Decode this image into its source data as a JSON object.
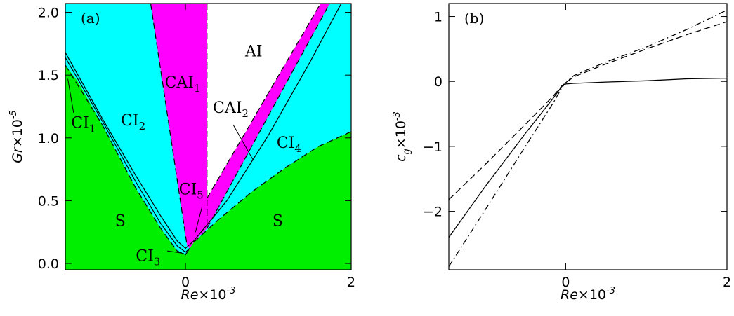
{
  "colors": {
    "stable": "#00ee00",
    "convective": "#00ffff",
    "abs_conv": "#ff00ff",
    "absolute": "#ffffff"
  },
  "chart_data": [
    {
      "panel_label": "(a)",
      "type": "area",
      "xlabel_main": "Re",
      "xlabel_exp": "-3",
      "xlabel_mult": "×10",
      "ylabel_main": "Gr",
      "ylabel_exp": "-5",
      "ylabel_mult": "×10",
      "xlim": [
        -1.45,
        2.0
      ],
      "ylim": [
        -0.05,
        2.07
      ],
      "x_ticks": [
        {
          "v": 0,
          "label": "0"
        },
        {
          "v": 2,
          "label": "2"
        }
      ],
      "y_ticks": [
        {
          "v": 0.0,
          "label": "0.0"
        },
        {
          "v": 0.5,
          "label": "0.5"
        },
        {
          "v": 1.0,
          "label": "1.0"
        },
        {
          "v": 1.5,
          "label": "1.5"
        },
        {
          "v": 2.0,
          "label": "2.0"
        }
      ],
      "regions": [
        {
          "id": "S_left",
          "color": "stable",
          "points": [
            [
              -1.45,
              -0.05
            ],
            [
              -1.45,
              1.58
            ],
            [
              -1.3,
              1.45
            ],
            [
              -1.0,
              1.1
            ],
            [
              -0.6,
              0.6
            ],
            [
              -0.3,
              0.28
            ],
            [
              -0.1,
              0.1
            ],
            [
              0.0,
              0.07
            ],
            [
              0.05,
              0.12
            ],
            [
              0.1,
              0.17
            ],
            [
              0.4,
              0.35
            ],
            [
              0.8,
              0.57
            ],
            [
              1.2,
              0.76
            ],
            [
              1.6,
              0.93
            ],
            [
              2.0,
              1.05
            ],
            [
              2.0,
              -0.05
            ]
          ]
        },
        {
          "id": "CI",
          "color": "convective",
          "points": [
            [
              -1.45,
              1.58
            ],
            [
              -1.45,
              2.07
            ],
            [
              -0.42,
              2.07
            ],
            [
              0.02,
              0.14
            ],
            [
              0.05,
              0.12
            ],
            [
              0.0,
              0.07
            ],
            [
              -0.1,
              0.1
            ],
            [
              -0.3,
              0.28
            ],
            [
              -0.6,
              0.6
            ],
            [
              -1.0,
              1.1
            ],
            [
              -1.3,
              1.45
            ]
          ]
        },
        {
          "id": "CI_right",
          "color": "convective",
          "points": [
            [
              0.28,
              0.4
            ],
            [
              1.7,
              2.07
            ],
            [
              2.0,
              2.07
            ],
            [
              2.0,
              1.05
            ],
            [
              1.6,
              0.93
            ],
            [
              1.2,
              0.76
            ],
            [
              0.8,
              0.57
            ],
            [
              0.4,
              0.35
            ],
            [
              0.1,
              0.17
            ]
          ]
        },
        {
          "id": "CAI1",
          "color": "abs_conv",
          "points": [
            [
              -0.42,
              2.07
            ],
            [
              0.26,
              2.07
            ],
            [
              0.26,
              0.28
            ],
            [
              0.1,
              0.17
            ],
            [
              0.05,
              0.12
            ],
            [
              0.02,
              0.14
            ]
          ]
        },
        {
          "id": "CAI2",
          "color": "abs_conv",
          "points": [
            [
              0.26,
              0.28
            ],
            [
              1.74,
              2.07
            ],
            [
              1.63,
              2.07
            ],
            [
              0.26,
              0.52
            ]
          ]
        },
        {
          "id": "AI",
          "color": "absolute",
          "points": [
            [
              0.26,
              0.52
            ],
            [
              1.63,
              2.07
            ],
            [
              0.26,
              2.07
            ]
          ]
        }
      ],
      "curves": [
        {
          "style": "dashed",
          "points": [
            [
              -0.42,
              2.07
            ],
            [
              0.02,
              0.14
            ]
          ]
        },
        {
          "style": "dashed",
          "points": [
            [
              0.26,
              2.07
            ],
            [
              0.26,
              0.28
            ]
          ]
        },
        {
          "style": "dashed",
          "points": [
            [
              0.26,
              0.52
            ],
            [
              1.63,
              2.07
            ]
          ]
        },
        {
          "style": "dashed",
          "points": [
            [
              0.26,
              0.28
            ],
            [
              1.74,
              2.07
            ]
          ]
        },
        {
          "style": "dashed",
          "points": [
            [
              0.1,
              0.17
            ],
            [
              0.4,
              0.35
            ],
            [
              0.8,
              0.57
            ],
            [
              1.2,
              0.76
            ],
            [
              1.6,
              0.93
            ],
            [
              2.0,
              1.05
            ]
          ]
        },
        {
          "style": "dashed",
          "points": [
            [
              -1.45,
              1.58
            ],
            [
              -1.0,
              1.1
            ],
            [
              -0.6,
              0.6
            ],
            [
              -0.3,
              0.28
            ],
            [
              -0.1,
              0.1
            ],
            [
              0.0,
              0.07
            ],
            [
              0.05,
              0.12
            ]
          ]
        },
        {
          "style": "solid",
          "points": [
            [
              -1.45,
              1.68
            ],
            [
              -1.0,
              1.15
            ],
            [
              -0.6,
              0.7
            ],
            [
              -0.3,
              0.38
            ],
            [
              -0.1,
              0.18
            ],
            [
              0.0,
              0.12
            ],
            [
              0.1,
              0.18
            ],
            [
              0.5,
              0.5
            ],
            [
              1.0,
              1.02
            ],
            [
              1.5,
              1.6
            ],
            [
              1.88,
              2.07
            ]
          ]
        },
        {
          "style": "solid",
          "points": [
            [
              -1.45,
              1.64
            ],
            [
              -1.0,
              1.13
            ],
            [
              -0.6,
              0.65
            ],
            [
              -0.3,
              0.32
            ],
            [
              -0.1,
              0.14
            ],
            [
              0.0,
              0.09
            ],
            [
              0.05,
              0.12
            ]
          ]
        }
      ],
      "labels": [
        {
          "main": "AI",
          "sub": "",
          "x": 0.72,
          "y": 1.65
        },
        {
          "main": "CAI",
          "sub": "1",
          "x": -0.25,
          "y": 1.4
        },
        {
          "main": "CAI",
          "sub": "2",
          "x": 0.33,
          "y": 1.2
        },
        {
          "main": "CI",
          "sub": "1",
          "x": -1.38,
          "y": 1.08
        },
        {
          "main": "CI",
          "sub": "2",
          "x": -0.78,
          "y": 1.1
        },
        {
          "main": "CI",
          "sub": "4",
          "x": 1.1,
          "y": 0.92
        },
        {
          "main": "CI",
          "sub": "5",
          "x": -0.08,
          "y": 0.55
        },
        {
          "main": "CI",
          "sub": "3",
          "x": -0.6,
          "y": 0.02
        },
        {
          "main": "S",
          "sub": "",
          "x": -0.85,
          "y": 0.3
        },
        {
          "main": "S",
          "sub": "",
          "x": 1.05,
          "y": 0.3
        }
      ],
      "leaders": [
        {
          "from": [
            -1.35,
            1.2
          ],
          "to": [
            -1.42,
            1.47
          ]
        },
        {
          "from": [
            0.58,
            1.1
          ],
          "to": [
            0.82,
            0.82
          ]
        },
        {
          "from": [
            0.2,
            0.45
          ],
          "to": [
            0.12,
            0.25
          ]
        },
        {
          "from": [
            -0.22,
            0.1
          ],
          "to": [
            -0.02,
            0.08
          ]
        }
      ]
    },
    {
      "panel_label": "(b)",
      "type": "line",
      "xlabel_main": "Re",
      "xlabel_exp": "-3",
      "xlabel_mult": "×10",
      "ylabel_main": "c",
      "ylabel_sub": "g",
      "ylabel_exp": "-3",
      "ylabel_mult": "×10",
      "xlim": [
        -1.45,
        2.0
      ],
      "ylim": [
        -2.9,
        1.2
      ],
      "x_ticks": [
        {
          "v": 0,
          "label": "0"
        },
        {
          "v": 2,
          "label": "2"
        }
      ],
      "y_ticks": [
        {
          "v": -2,
          "label": "−2"
        },
        {
          "v": -1,
          "label": "−1"
        },
        {
          "v": 0,
          "label": "0"
        },
        {
          "v": 1,
          "label": "1"
        }
      ],
      "series": [
        {
          "style": "solid",
          "points": [
            [
              -1.45,
              -2.4
            ],
            [
              -1.0,
              -1.62
            ],
            [
              -0.5,
              -0.8
            ],
            [
              -0.15,
              -0.25
            ],
            [
              -0.05,
              -0.08
            ],
            [
              0.0,
              -0.04
            ],
            [
              0.1,
              -0.03
            ],
            [
              0.5,
              -0.01
            ],
            [
              1.0,
              0.01
            ],
            [
              1.5,
              0.04
            ],
            [
              2.0,
              0.05
            ]
          ]
        },
        {
          "style": "dashed",
          "points": [
            [
              -1.45,
              -1.82
            ],
            [
              -1.0,
              -1.28
            ],
            [
              -0.5,
              -0.66
            ],
            [
              -0.15,
              -0.22
            ],
            [
              -0.05,
              -0.07
            ],
            [
              0.0,
              -0.02
            ],
            [
              0.1,
              0.07
            ],
            [
              0.5,
              0.27
            ],
            [
              1.0,
              0.5
            ],
            [
              1.5,
              0.72
            ],
            [
              2.0,
              0.92
            ]
          ]
        },
        {
          "style": "dashdot",
          "points": [
            [
              -1.45,
              -2.85
            ],
            [
              -1.0,
              -1.98
            ],
            [
              -0.5,
              -1.0
            ],
            [
              -0.15,
              -0.32
            ],
            [
              -0.05,
              -0.1
            ],
            [
              0.0,
              -0.02
            ],
            [
              0.1,
              0.09
            ],
            [
              0.5,
              0.3
            ],
            [
              1.0,
              0.53
            ],
            [
              1.5,
              0.8
            ],
            [
              2.0,
              1.1
            ]
          ]
        }
      ]
    }
  ]
}
